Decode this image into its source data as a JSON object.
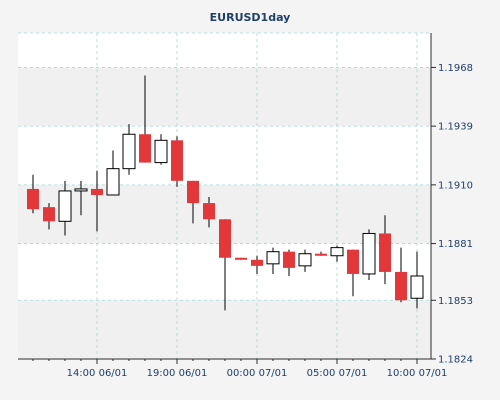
{
  "chart_data": {
    "type": "candlestick",
    "title": "EURUSD1day",
    "xlabel": "",
    "ylabel": "",
    "ylim": [
      1.1824,
      1.1985
    ],
    "yticks": [
      1.1824,
      1.1853,
      1.1881,
      1.191,
      1.1939,
      1.1968
    ],
    "ytick_labels": [
      "1.1824",
      "1.1853",
      "1.1881",
      "1.1910",
      "1.1939",
      "1.1968"
    ],
    "xtick_labels": [
      "14:00 06/01",
      "19:00 06/01",
      "00:00 07/01",
      "05:00 07/01",
      "10:00 07/01"
    ],
    "xtick_positions": [
      4,
      9,
      14,
      19,
      24
    ],
    "grid": true,
    "legend": "none",
    "colors": {
      "background": "#f4f4f4",
      "plot_area": "#ffffff",
      "band": "#f0f0f0",
      "grid": "#a6d8d8",
      "axis": "#2c2c2c",
      "bull": "#ffffff",
      "bear": "#e2383c",
      "outline": "#000000",
      "text": "#1f3f68"
    },
    "candles": [
      {
        "open": 1.1908,
        "high": 1.1915,
        "low": 1.1896,
        "close": 1.1898
      },
      {
        "open": 1.1899,
        "high": 1.1901,
        "low": 1.1888,
        "close": 1.1892
      },
      {
        "open": 1.1892,
        "high": 1.1912,
        "low": 1.1885,
        "close": 1.1907
      },
      {
        "open": 1.1907,
        "high": 1.1912,
        "low": 1.1895,
        "close": 1.1908
      },
      {
        "open": 1.1908,
        "high": 1.1917,
        "low": 1.1887,
        "close": 1.1905
      },
      {
        "open": 1.1905,
        "high": 1.1927,
        "low": 1.1905,
        "close": 1.1918
      },
      {
        "open": 1.1918,
        "high": 1.194,
        "low": 1.1915,
        "close": 1.1935
      },
      {
        "open": 1.1935,
        "high": 1.1964,
        "low": 1.1921,
        "close": 1.1921
      },
      {
        "open": 1.1921,
        "high": 1.1935,
        "low": 1.192,
        "close": 1.1932
      },
      {
        "open": 1.1932,
        "high": 1.1934,
        "low": 1.1909,
        "close": 1.1912
      },
      {
        "open": 1.1912,
        "high": 1.1911,
        "low": 1.1891,
        "close": 1.1901
      },
      {
        "open": 1.1901,
        "high": 1.1904,
        "low": 1.1889,
        "close": 1.1893
      },
      {
        "open": 1.1893,
        "high": 1.1892,
        "low": 1.1848,
        "close": 1.1874
      },
      {
        "open": 1.1874,
        "high": 1.1874,
        "low": 1.1873,
        "close": 1.1873
      },
      {
        "open": 1.1873,
        "high": 1.1875,
        "low": 1.1866,
        "close": 1.187
      },
      {
        "open": 1.1871,
        "high": 1.1879,
        "low": 1.1866,
        "close": 1.1877
      },
      {
        "open": 1.1877,
        "high": 1.1878,
        "low": 1.1865,
        "close": 1.1869
      },
      {
        "open": 1.187,
        "high": 1.1878,
        "low": 1.1867,
        "close": 1.1876
      },
      {
        "open": 1.1876,
        "high": 1.1877,
        "low": 1.1875,
        "close": 1.1875
      },
      {
        "open": 1.1875,
        "high": 1.188,
        "low": 1.1872,
        "close": 1.1879
      },
      {
        "open": 1.1878,
        "high": 1.1877,
        "low": 1.1855,
        "close": 1.1866
      },
      {
        "open": 1.1866,
        "high": 1.1888,
        "low": 1.1863,
        "close": 1.1886
      },
      {
        "open": 1.1886,
        "high": 1.1895,
        "low": 1.1861,
        "close": 1.1867
      },
      {
        "open": 1.1867,
        "high": 1.1879,
        "low": 1.1852,
        "close": 1.1853
      },
      {
        "open": 1.1854,
        "high": 1.1877,
        "low": 1.1849,
        "close": 1.1865
      }
    ]
  }
}
